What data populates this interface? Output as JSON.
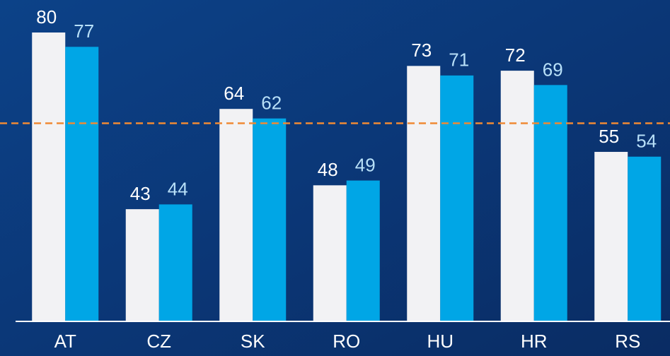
{
  "chart_data": {
    "type": "bar",
    "categories": [
      "AT",
      "CZ",
      "SK",
      "RO",
      "HU",
      "HR",
      "RS"
    ],
    "series": [
      {
        "color": "#f2f2f4",
        "label_color": "#ffffff",
        "values": [
          80,
          43,
          64,
          48,
          73,
          72,
          55
        ]
      },
      {
        "color": "#00a6e6",
        "label_color": "#b8e0f8",
        "values": [
          77,
          44,
          62,
          49,
          71,
          69,
          54
        ]
      }
    ],
    "ylim": [
      19.5,
      87
    ],
    "reference_line": {
      "value": 61,
      "color": "#f08a34"
    }
  }
}
